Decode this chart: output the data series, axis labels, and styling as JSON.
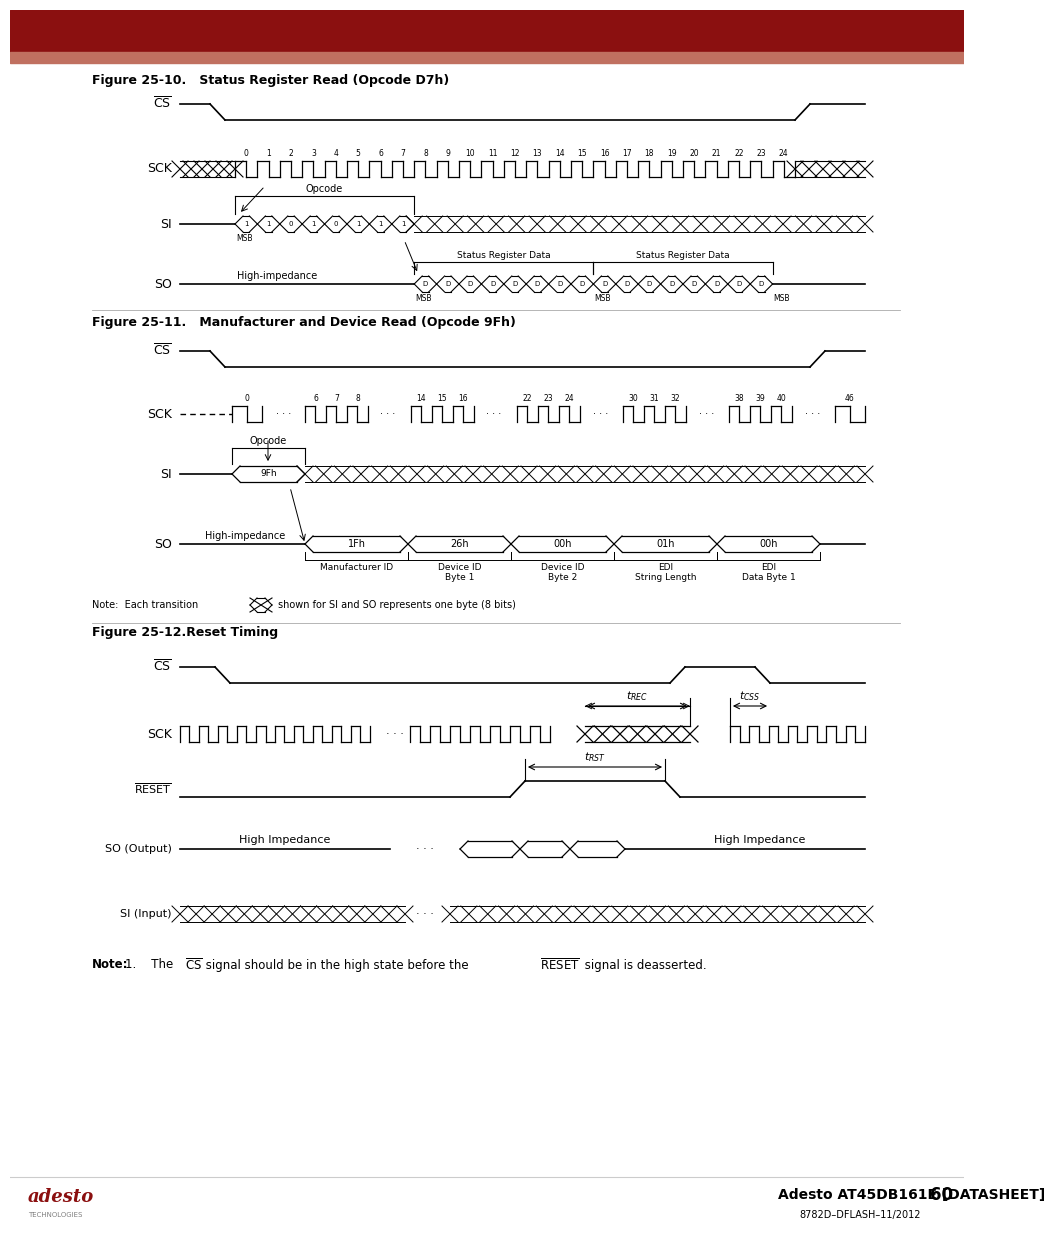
{
  "header_color1": "#8B1010",
  "header_color2": "#C07060",
  "bg_color": "#FFFFFF",
  "fig_title1": "Figure 25-10.   Status Register Read (Opcode D7h)",
  "fig_title2": "Figure 25-11.   Manufacturer and Device Read (Opcode 9Fh)",
  "fig_title3": "Figure 25-12.Reset Timing",
  "footer_title": "Adesto AT45DB161E [DATASHEET]",
  "footer_page": "60",
  "footer_sub": "8782D–DFLASH–11/2012",
  "note_text1": "Note:  Each transition",
  "note_text2": "shown for SI and SO represents one byte (8 bits)"
}
